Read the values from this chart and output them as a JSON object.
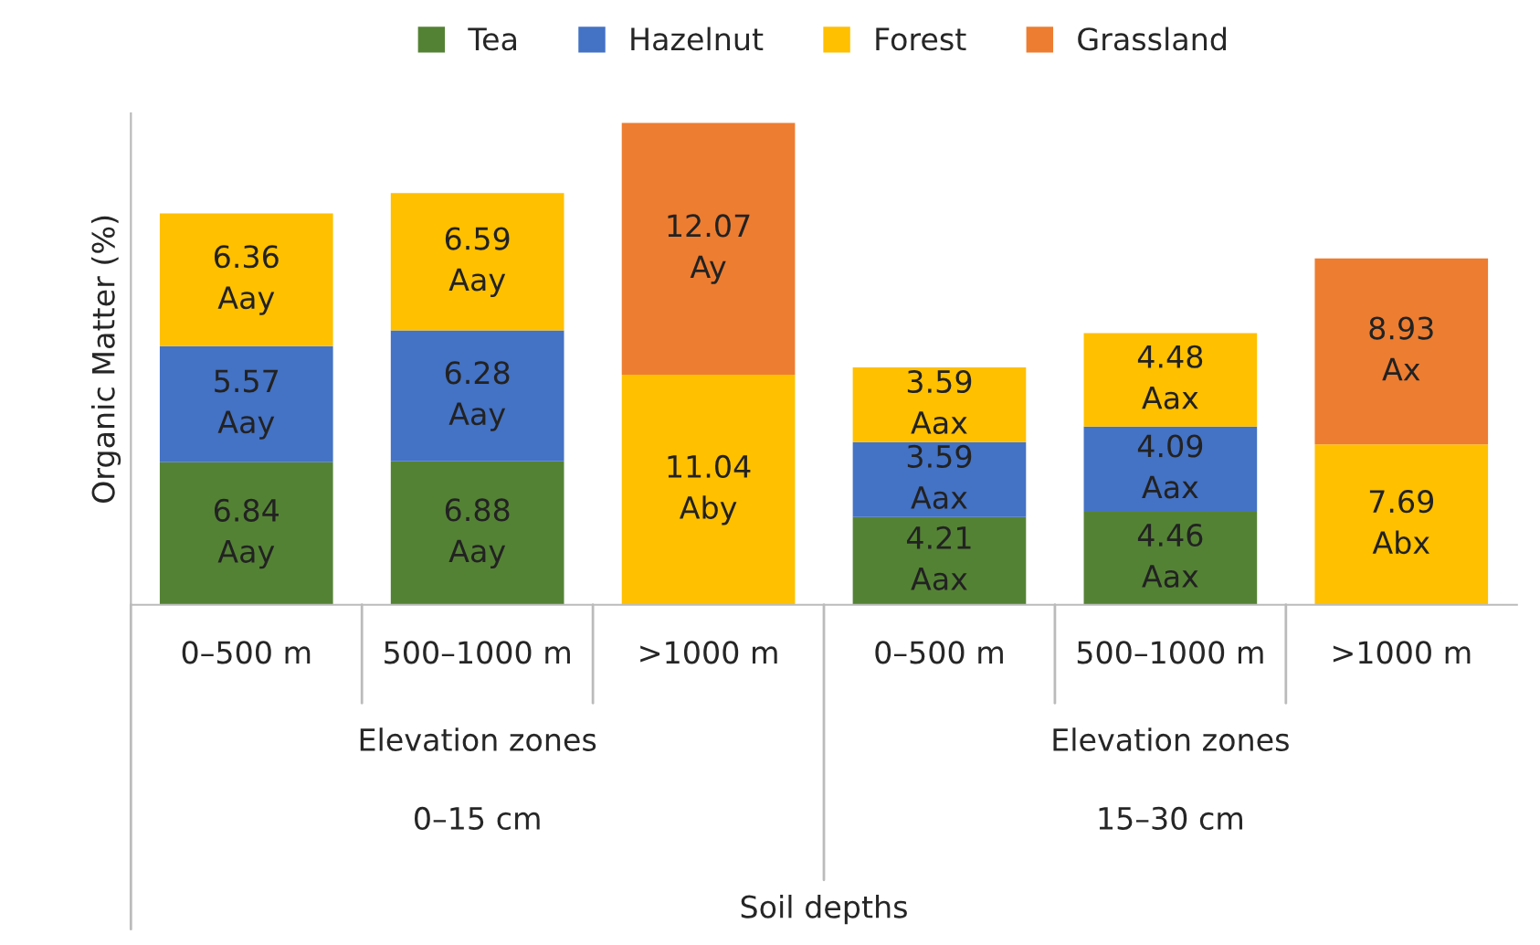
{
  "chart_data": {
    "type": "bar",
    "stacked": true,
    "ylabel": "Organic Matter (%)",
    "categories": [
      "0–500 m",
      "500–1000 m",
      ">1000 m",
      "0–500 m",
      "500–1000 m",
      ">1000 m"
    ],
    "series": [
      {
        "name": "Tea",
        "color": "#548235",
        "values": [
          6.84,
          6.88,
          null,
          4.21,
          4.46,
          null
        ],
        "value_labels": [
          "6.84\nAay",
          "6.88\nAay",
          null,
          "4.21\nAax",
          "4.46\nAax",
          null
        ]
      },
      {
        "name": "Hazelnut",
        "color": "#4472c4",
        "values": [
          5.57,
          6.28,
          null,
          3.59,
          4.09,
          null
        ],
        "value_labels": [
          "5.57\nAay",
          "6.28\nAay",
          null,
          "3.59\nAax",
          "4.09\nAax",
          null
        ]
      },
      {
        "name": "Forest",
        "color": "#ffc000",
        "values": [
          6.36,
          6.59,
          11.04,
          3.59,
          4.48,
          7.69
        ],
        "value_labels": [
          "6.36\nAay",
          "6.59\nAay",
          "11.04\nAby",
          "3.59\nAax",
          "4.48\nAax",
          "7.69\nAbx"
        ]
      },
      {
        "name": "Grassland",
        "color": "#ed7d31",
        "values": [
          null,
          null,
          12.07,
          null,
          null,
          8.93
        ],
        "value_labels": [
          null,
          null,
          "12.07\nAy",
          null,
          null,
          "8.93\nAx"
        ]
      }
    ],
    "annotations": [
      "Elevation zones",
      "0–15 cm",
      "Elevation zones",
      "15–30 cm",
      "Soil depths"
    ],
    "legend": "top",
    "grid": false,
    "tick_labels": "x"
  }
}
